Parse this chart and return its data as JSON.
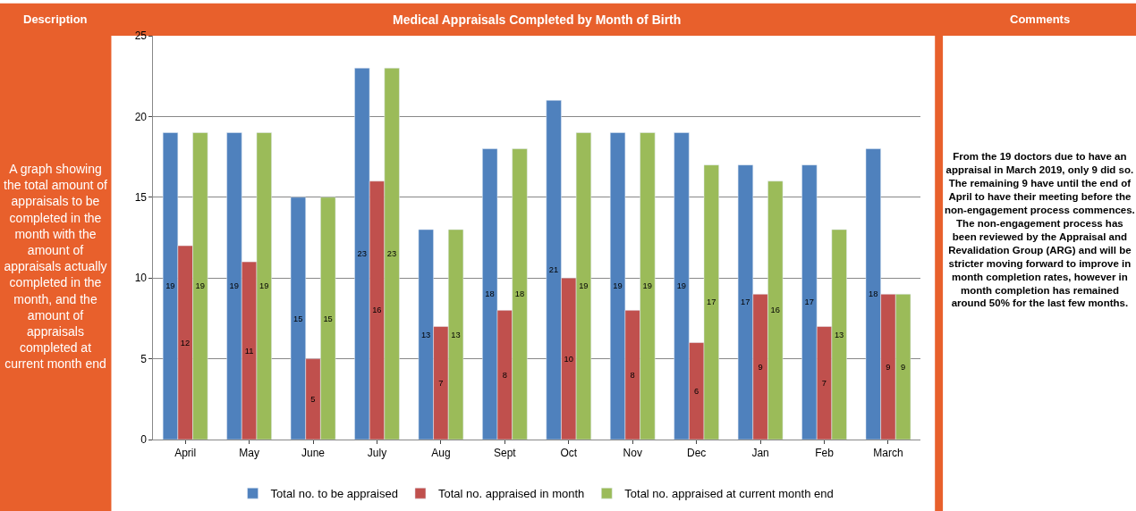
{
  "chart_data": {
    "type": "bar",
    "title": "Medical Appraisals Completed by Month of Birth",
    "categories": [
      "April",
      "May",
      "June",
      "July",
      "Aug",
      "Sept",
      "Oct",
      "Nov",
      "Dec",
      "Jan",
      "Feb",
      "March"
    ],
    "series": [
      {
        "name": "Total no. to be appraised",
        "color": "#4f81bd",
        "values": [
          19,
          19,
          15,
          23,
          13,
          18,
          21,
          19,
          19,
          17,
          17,
          18
        ]
      },
      {
        "name": "Total no. appraised in month",
        "color": "#c0504d",
        "values": [
          12,
          11,
          5,
          16,
          7,
          8,
          10,
          8,
          6,
          9,
          7,
          9
        ]
      },
      {
        "name": "Total no. appraised at current month end",
        "color": "#9bbb59",
        "values": [
          19,
          19,
          15,
          23,
          13,
          18,
          19,
          19,
          17,
          16,
          13,
          9
        ]
      }
    ],
    "ylim": [
      0,
      25
    ],
    "yticks": [
      0,
      5,
      10,
      15,
      20,
      25
    ],
    "grid": "y",
    "legend": "bottom",
    "data_labels": true,
    "annotations": [
      "Description",
      "A graph showing\nthe total amount of\nappraisals to be\ncompleted in the\nmonth with the\namount of\nappraisals actually\ncompleted in the\nmonth, and the\namount of\nappraisals\ncompleted at\ncurrent month end",
      "Comments",
      "From the 19 doctors due to have an\nappraisal in March 2019, only 9 did so.\nThe remaining 9 have until the end of\nApril to have their meeting before the\nnon-engagement process commences.\nThe non-engagement process has\nbeen reviewed by the Appraisal and\nRevalidation Group (ARG) and will be\nstricter moving forward to improve in\nmonth completion rates, however in\nmonth completion has remained\naround 50% for the last few months."
    ]
  }
}
